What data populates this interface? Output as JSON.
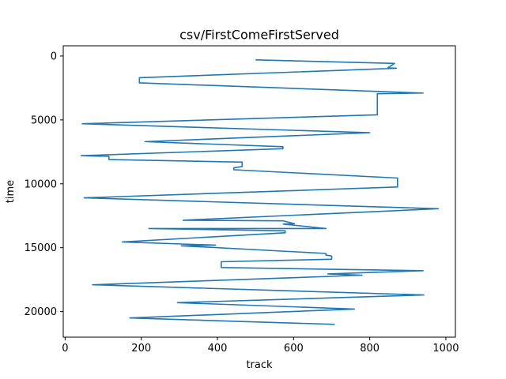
{
  "chart_data": {
    "type": "line",
    "title": "csv/FirstComeFirstServed",
    "xlabel": "track",
    "ylabel": "time",
    "xlim": [
      -5,
      1025
    ],
    "ylim": [
      22000,
      -800
    ],
    "y_inverted": true,
    "grid": false,
    "x_ticks": [
      0,
      200,
      400,
      600,
      800,
      1000
    ],
    "y_ticks": [
      0,
      5000,
      10000,
      15000,
      20000
    ],
    "x_tick_labels": [
      "0",
      "200",
      "400",
      "600",
      "800",
      "1000"
    ],
    "y_tick_labels": [
      "0",
      "5000",
      "10000",
      "15000",
      "20000"
    ],
    "series": [
      {
        "color": "#1f77b4",
        "x": [
          500,
          865,
          848,
          870,
          195,
          195,
          940,
          820,
          820,
          45,
          800,
          210,
          572,
          572,
          42,
          115,
          115,
          465,
          465,
          443,
          443,
          873,
          873,
          50,
          980,
          310,
          573,
          602,
          573,
          685,
          220,
          578,
          578,
          150,
          395,
          305,
          685,
          685,
          700,
          700,
          410,
          410,
          940,
          690,
          780,
          690,
          72,
          942,
          295,
          760,
          170,
          708
        ],
        "y": [
          300,
          580,
          920,
          960,
          1700,
          2100,
          2900,
          2950,
          4600,
          5300,
          6000,
          6700,
          7100,
          7250,
          7800,
          7850,
          8100,
          8300,
          8650,
          8750,
          8900,
          9550,
          10250,
          11100,
          11950,
          12850,
          12900,
          13120,
          13150,
          13500,
          13500,
          13680,
          13830,
          14550,
          14800,
          14850,
          15450,
          15580,
          15650,
          15900,
          16100,
          16550,
          16800,
          17050,
          17150,
          17250,
          17900,
          18700,
          19300,
          19800,
          20500,
          21000
        ]
      }
    ]
  }
}
